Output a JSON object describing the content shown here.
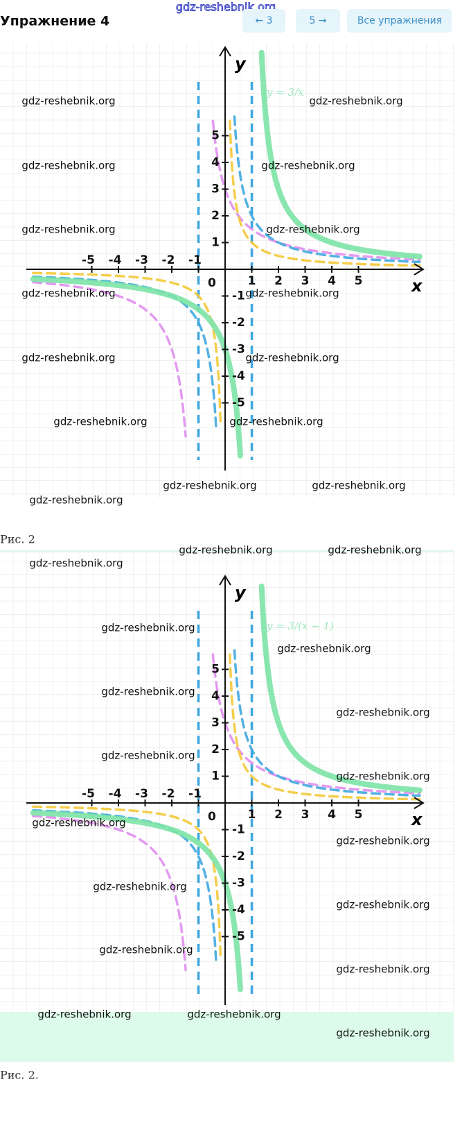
{
  "header": {
    "site": "gdz-reshebnik.org",
    "title": "Упражнение 4",
    "prev": "← 3",
    "next": "5 →",
    "all": "Все упражнения"
  },
  "figures": [
    {
      "formula": "y = 3/x",
      "x_label": "x",
      "y_label": "y",
      "origin": "0",
      "x_ticks": [
        -5,
        -4,
        -3,
        -2,
        -1,
        1,
        2,
        3,
        4,
        5
      ],
      "y_ticks": [
        5,
        4,
        3,
        2,
        1,
        -1,
        -2,
        -3,
        -4,
        -5
      ],
      "watermarks": [
        "gdz-reshebnik.org",
        "gdz-reshebnik.org",
        "gdz-reshebnik.org",
        "gdz-reshebnik.org",
        "gdz-reshebnik.org",
        "gdz-reshebnik.org",
        "gdz-reshebnik.org",
        "gdz-reshebnik.org",
        "gdz-reshebnik.org",
        "gdz-reshebnik.org",
        "gdz-reshebnik.org",
        "gdz-reshebnik.org",
        "gdz-reshebnik.org",
        "gdz-reshebnik.org",
        "gdz-reshebnik.org"
      ],
      "caption": "Рис. 2"
    },
    {
      "formula": "y = 3/(x − 1)",
      "x_label": "x",
      "y_label": "y",
      "origin": "0",
      "x_ticks": [
        -5,
        -4,
        -3,
        -2,
        -1,
        1,
        2,
        3,
        4,
        5
      ],
      "y_ticks": [
        5,
        4,
        3,
        2,
        1,
        -1,
        -2,
        -3,
        -4,
        -5
      ],
      "watermarks": [
        "gdz-reshebnik.org",
        "gdz-reshebnik.org",
        "gdz-reshebnik.org",
        "gdz-reshebnik.org",
        "gdz-reshebnik.org",
        "gdz-reshebnik.org",
        "gdz-reshebnik.org",
        "gdz-reshebnik.org",
        "gdz-reshebnik.org",
        "gdz-reshebnik.org",
        "gdz-reshebnik.org",
        "gdz-reshebnik.org",
        "gdz-reshebnik.org",
        "gdz-reshebnik.org",
        "gdz-reshebnik.org",
        "gdz-reshebnik.org",
        "gdz-reshebnik.org",
        "gdz-reshebnik.org"
      ],
      "caption": "Рис. 2."
    }
  ]
}
